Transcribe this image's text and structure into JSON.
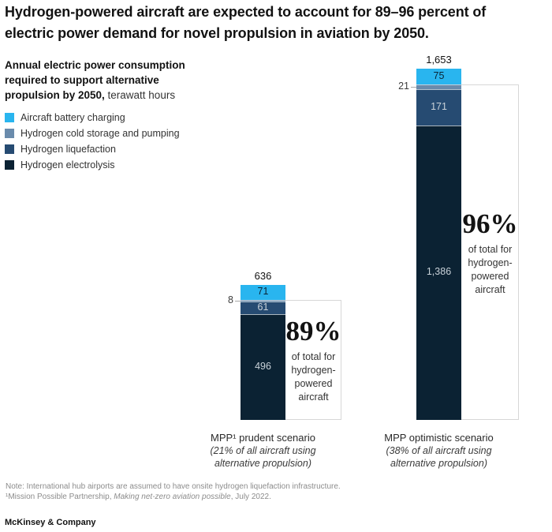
{
  "title": "Hydrogen-powered aircraft are expected to account for 89–96 percent of electric power demand for novel propulsion in aviation by 2050.",
  "subtitle": {
    "bold": "Annual electric power consumption required to support alternative propulsion by 2050,",
    "regular": " terawatt hours"
  },
  "legend": [
    {
      "label": "Aircraft battery charging",
      "color": "#29B5EF"
    },
    {
      "label": "Hydrogen cold storage and pumping",
      "color": "#6A8BAC"
    },
    {
      "label": "Hydrogen liquefaction",
      "color": "#264B72"
    },
    {
      "label": "Hydrogen electrolysis",
      "color": "#0B2233"
    }
  ],
  "chart_data": {
    "type": "bar",
    "stacked": true,
    "unit": "terawatt hours",
    "title": "Annual electric power consumption required to support alternative propulsion by 2050",
    "categories": [
      "MPP¹ prudent scenario",
      "MPP optimistic scenario"
    ],
    "category_subs": [
      [
        "(21% of all aircraft using",
        "alternative propulsion)"
      ],
      [
        "(38% of all aircraft using",
        "alternative propulsion)"
      ]
    ],
    "series": [
      {
        "name": "Aircraft battery charging",
        "color": "#29B5EF",
        "values": [
          71,
          75
        ],
        "labels": [
          "71",
          "75"
        ],
        "label_style": "dark-inside"
      },
      {
        "name": "Hydrogen cold storage and pumping",
        "color": "#6A8BAC",
        "values": [
          8,
          21
        ],
        "labels": [
          "8",
          "21"
        ],
        "label_style": "outside-left"
      },
      {
        "name": "Hydrogen liquefaction",
        "color": "#264B72",
        "values": [
          61,
          171
        ],
        "labels": [
          "61",
          "171"
        ],
        "label_style": "light-inside"
      },
      {
        "name": "Hydrogen electrolysis",
        "color": "#0B2233",
        "values": [
          496,
          1386
        ],
        "labels": [
          "496",
          "1,386"
        ],
        "label_style": "light-inside"
      }
    ],
    "totals": [
      636,
      1653
    ],
    "totals_display": [
      "636",
      "1,653"
    ],
    "callouts": [
      {
        "pct": "89%",
        "desc_lines": [
          "of total for",
          "hydrogen-",
          "powered",
          "aircraft"
        ]
      },
      {
        "pct": "96%",
        "desc_lines": [
          "of total for",
          "hydrogen-",
          "powered",
          "aircraft"
        ]
      }
    ],
    "axis": {
      "gridlines": false,
      "y_axis_shown": false
    },
    "colors": {
      "box_border": "#d7d7d7",
      "light_value_text": "#c9d2d9",
      "dark_value_text": "#0a2536"
    }
  },
  "footnotes": {
    "note": "Note: International hub airports are assumed to have onsite hydrogen liquefaction infrastructure.",
    "source_prefix": "¹Mission Possible Partnership, ",
    "source_italic": "Making net-zero aviation possible",
    "source_suffix": ", July 2022."
  },
  "brand": "McKinsey & Company"
}
